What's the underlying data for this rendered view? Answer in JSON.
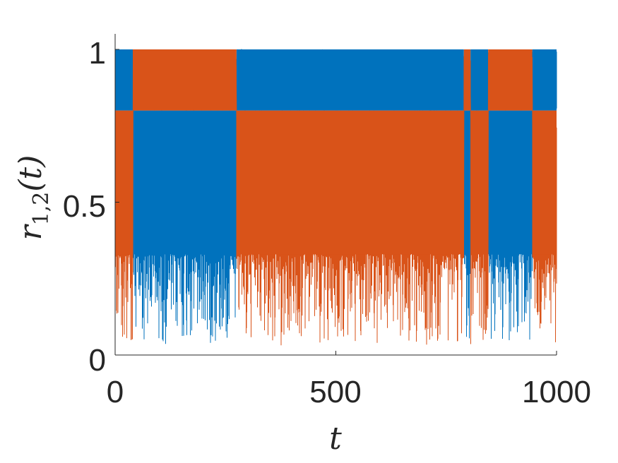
{
  "chart_data": {
    "type": "line",
    "title": "",
    "xlabel": "t",
    "ylabel": {
      "main": "r",
      "sub": "1,2",
      "arg": "(t)"
    },
    "xlim": [
      0,
      1000
    ],
    "ylim": [
      0,
      1
    ],
    "xticks": [
      0,
      500,
      1000
    ],
    "yticks": [
      0,
      0.5,
      1
    ],
    "xtick_labels": [
      "0",
      "500",
      "1000"
    ],
    "ytick_labels": [
      "0",
      "0.5",
      "1"
    ],
    "grid": false,
    "legend": "none",
    "series": [
      {
        "color": "#0072BD",
        "style": "dense oscillating trace",
        "band_segments": [
          {
            "t_start": 0,
            "t_end": 40,
            "lower": 0.8,
            "upper": 1.0
          },
          {
            "t_start": 40,
            "t_end": 275,
            "lower": 0.33,
            "upper": 0.8
          },
          {
            "t_start": 275,
            "t_end": 790,
            "lower": 0.8,
            "upper": 1.0
          },
          {
            "t_start": 790,
            "t_end": 805,
            "lower": 0.33,
            "upper": 0.8
          },
          {
            "t_start": 805,
            "t_end": 845,
            "lower": 0.8,
            "upper": 1.0
          },
          {
            "t_start": 845,
            "t_end": 945,
            "lower": 0.33,
            "upper": 0.8
          },
          {
            "t_start": 945,
            "t_end": 1000,
            "lower": 0.8,
            "upper": 1.0
          }
        ],
        "min_value": 0.03
      },
      {
        "color": "#D95319",
        "style": "dense oscillating trace",
        "band_segments": [
          {
            "t_start": 0,
            "t_end": 40,
            "lower": 0.33,
            "upper": 0.8
          },
          {
            "t_start": 40,
            "t_end": 275,
            "lower": 0.8,
            "upper": 1.0
          },
          {
            "t_start": 275,
            "t_end": 790,
            "lower": 0.33,
            "upper": 0.8
          },
          {
            "t_start": 790,
            "t_end": 805,
            "lower": 0.8,
            "upper": 1.0
          },
          {
            "t_start": 805,
            "t_end": 845,
            "lower": 0.33,
            "upper": 0.8
          },
          {
            "t_start": 845,
            "t_end": 945,
            "lower": 0.8,
            "upper": 1.0
          },
          {
            "t_start": 945,
            "t_end": 1000,
            "lower": 0.33,
            "upper": 0.8
          }
        ],
        "min_value": 0.03
      }
    ]
  }
}
